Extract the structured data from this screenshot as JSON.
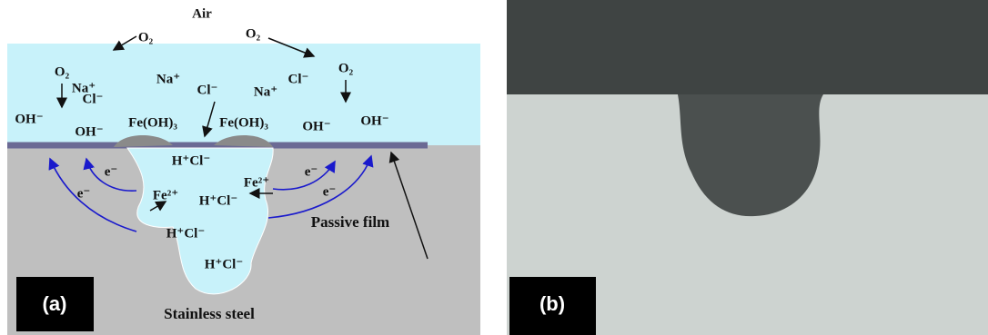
{
  "panel_a": {
    "labels": [
      "Air",
      "O₂",
      "O₂",
      "O₂",
      "Na⁺",
      "Cl⁻",
      "Na⁺",
      "Cl⁻",
      "Na⁺",
      "Cl⁻",
      "O₂",
      "OH⁻",
      "OH⁻",
      "Fe(OH)₃",
      "Fe(OH)₃",
      "OH⁻",
      "OH⁻",
      "H⁺Cl⁻",
      "e⁻",
      "e⁻",
      "e⁻",
      "e⁻",
      "Fe²⁺",
      "H⁺Cl⁻",
      "Fe²⁺",
      "H⁺Cl⁻",
      "H⁺Cl⁻",
      "Passive film",
      "Stainless steel"
    ],
    "tag": "(a)"
  },
  "panel_b": {
    "tag": "(b)"
  }
}
